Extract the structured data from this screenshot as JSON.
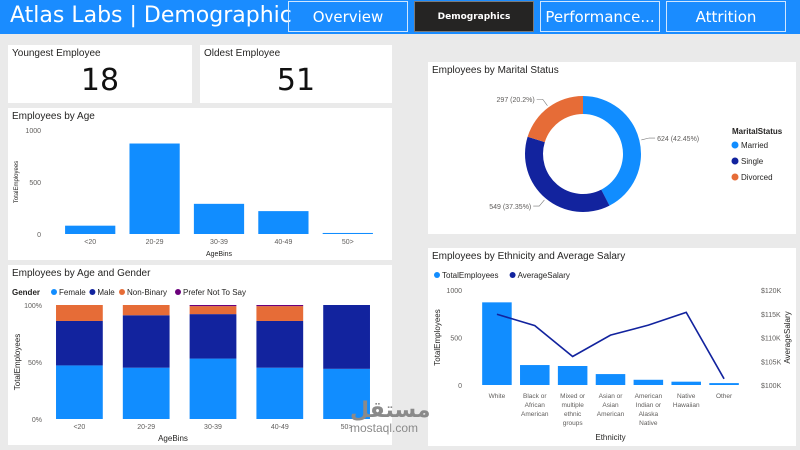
{
  "header": {
    "title": "Atlas Labs | Demographic",
    "tabs": [
      {
        "label": "Overview"
      },
      {
        "label": "Demographics",
        "active": true
      },
      {
        "label": "Performance..."
      },
      {
        "label": "Attrition"
      }
    ]
  },
  "kpis": {
    "youngest": {
      "label": "Youngest Employee",
      "value": "18"
    },
    "oldest": {
      "label": "Oldest Employee",
      "value": "51"
    }
  },
  "charts": {
    "age": {
      "title": "Employees by Age",
      "chart_data": {
        "type": "bar",
        "categories": [
          "<20",
          "20-29",
          "30-39",
          "40-49",
          "50>"
        ],
        "values": [
          80,
          870,
          290,
          220,
          10
        ],
        "xlabel": "AgeBins",
        "ylabel": "TotalEmployees",
        "ylim": [
          0,
          1000
        ],
        "yticks": [
          "0",
          "500",
          "1000"
        ],
        "grid": false,
        "color": "#118dff"
      }
    },
    "age_gender": {
      "title": "Employees by Age and Gender",
      "chart_data": {
        "type": "bar",
        "stacked": "100%",
        "categories": [
          "<20",
          "20-29",
          "30-39",
          "40-49",
          "50>"
        ],
        "legend_title": "Gender",
        "series": [
          {
            "name": "Female",
            "color": "#118dff",
            "values": [
              47,
              45,
              53,
              45,
              44
            ]
          },
          {
            "name": "Male",
            "color": "#12239e",
            "values": [
              39,
              46,
              39,
              41,
              56
            ]
          },
          {
            "name": "Non-Binary",
            "color": "#e66c37",
            "values": [
              14,
              9,
              7,
              13,
              0
            ]
          },
          {
            "name": "Prefer Not To Say",
            "color": "#6b007b",
            "values": [
              0,
              0,
              1,
              1,
              0
            ]
          }
        ],
        "xlabel": "AgeBins",
        "ylabel": "TotalEmployees",
        "yticks": [
          "0%",
          "50%",
          "100%"
        ],
        "legend": "top-left"
      }
    },
    "marital": {
      "title": "Employees by Marital Status",
      "chart_data": {
        "type": "pie",
        "donut": true,
        "legend_title": "MaritalStatus",
        "legend": "right",
        "slices": [
          {
            "name": "Married",
            "value": 624,
            "pct": 42.45,
            "label": "624 (42.45%)",
            "color": "#118dff"
          },
          {
            "name": "Single",
            "value": 549,
            "pct": 37.35,
            "label": "549 (37.35%)",
            "color": "#12239e"
          },
          {
            "name": "Divorced",
            "value": 297,
            "pct": 20.2,
            "label": "297 (20.2%)",
            "color": "#e66c37"
          }
        ]
      }
    },
    "ethnicity": {
      "title": "Employees by Ethnicity and Average Salary",
      "chart_data": {
        "type": "bar",
        "combo_line": true,
        "categories": [
          [
            "White"
          ],
          [
            "Black or",
            "African",
            "American"
          ],
          [
            "Mixed or",
            "multiple",
            "ethnic",
            "groups"
          ],
          [
            "Asian or",
            "Asian",
            "American"
          ],
          [
            "American",
            "Indian or",
            "Alaska",
            "Native"
          ],
          [
            "Native",
            "Hawaiian"
          ],
          [
            "Other"
          ]
        ],
        "series": [
          {
            "name": "TotalEmployees",
            "type": "bar",
            "color": "#118dff",
            "values": [
              870,
              210,
              200,
              115,
              55,
              35,
              20
            ]
          },
          {
            "name": "AverageSalary",
            "type": "line",
            "color": "#12239e",
            "values": [
              114900,
              112500,
              106000,
              110500,
              112600,
              115300,
              101300
            ]
          }
        ],
        "xlabel": "Ethnicity",
        "ylabel": "TotalEmployees",
        "y2label": "AverageSalary",
        "ylim": [
          0,
          1000
        ],
        "y2lim": [
          100000,
          120000
        ],
        "yticks": [
          "0",
          "500",
          "1000"
        ],
        "y2ticks": [
          "$100K",
          "$105K",
          "$110K",
          "$115K",
          "$120K"
        ],
        "legend": "top-left"
      }
    }
  },
  "watermark": {
    "arabic": "مستقل",
    "latin": "mostaql.com"
  }
}
